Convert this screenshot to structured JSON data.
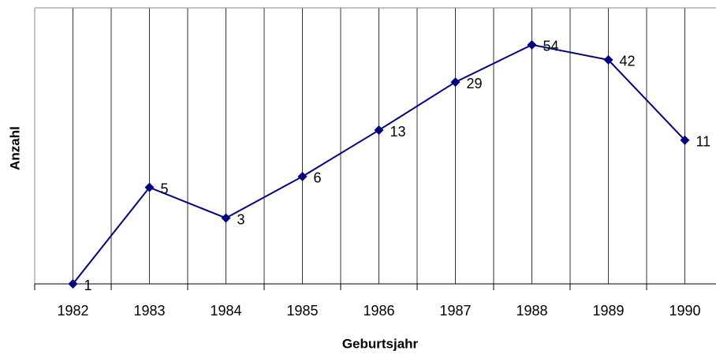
{
  "chart_data": {
    "type": "line",
    "x_label": "Geburtsjahr",
    "y_label": "Anzahl",
    "categories": [
      "1982",
      "1983",
      "1984",
      "1985",
      "1986",
      "1987",
      "1988",
      "1989",
      "1990"
    ],
    "series": [
      {
        "color": "#000080",
        "values": [
          1,
          5,
          3,
          6,
          13,
          29,
          54,
          42,
          11
        ]
      }
    ],
    "ylim": [
      1,
      100
    ],
    "log_y": true,
    "grid": true
  }
}
